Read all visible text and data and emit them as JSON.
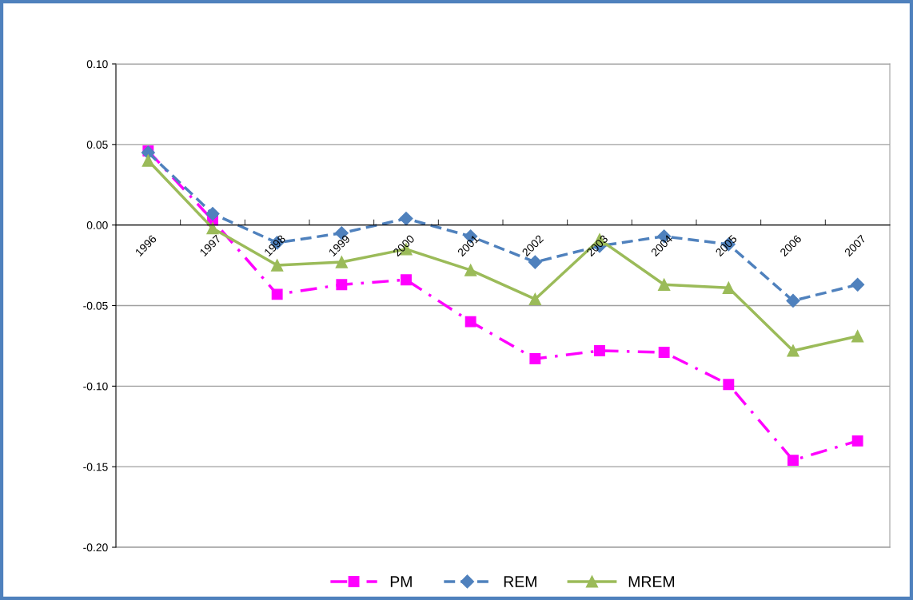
{
  "chart_data": {
    "type": "line",
    "categories": [
      "1996",
      "1997",
      "1998",
      "1999",
      "2000",
      "2001",
      "2002",
      "2003",
      "2004",
      "2005",
      "2006",
      "2007"
    ],
    "series": [
      {
        "name": "PM",
        "color": "#ff00ff",
        "marker": "square",
        "line_style": "dashdot",
        "values": [
          0.046,
          0.003,
          -0.043,
          -0.037,
          -0.034,
          -0.06,
          -0.083,
          -0.078,
          -0.079,
          -0.099,
          -0.146,
          -0.134
        ]
      },
      {
        "name": "REM",
        "color": "#4f81bd",
        "marker": "diamond",
        "line_style": "dashed",
        "values": [
          0.045,
          0.007,
          -0.011,
          -0.005,
          0.004,
          -0.007,
          -0.023,
          -0.013,
          -0.007,
          -0.012,
          -0.047,
          -0.037
        ]
      },
      {
        "name": "MREM",
        "color": "#9bbb59",
        "marker": "triangle",
        "line_style": "solid",
        "values": [
          0.04,
          -0.002,
          -0.025,
          -0.023,
          -0.015,
          -0.028,
          -0.046,
          -0.009,
          -0.037,
          -0.039,
          -0.078,
          -0.069
        ]
      }
    ],
    "ylim": [
      -0.2,
      0.1
    ],
    "yticks": [
      {
        "value": -0.2,
        "label": "-0.20"
      },
      {
        "value": -0.15,
        "label": "-0.15"
      },
      {
        "value": -0.1,
        "label": "-0.10"
      },
      {
        "value": -0.05,
        "label": "-0.05"
      },
      {
        "value": 0,
        "label": "0.00"
      },
      {
        "value": 0.05,
        "label": "0.05"
      },
      {
        "value": 0.1,
        "label": "0.10"
      }
    ],
    "grid": "y",
    "legend": "bottom"
  }
}
